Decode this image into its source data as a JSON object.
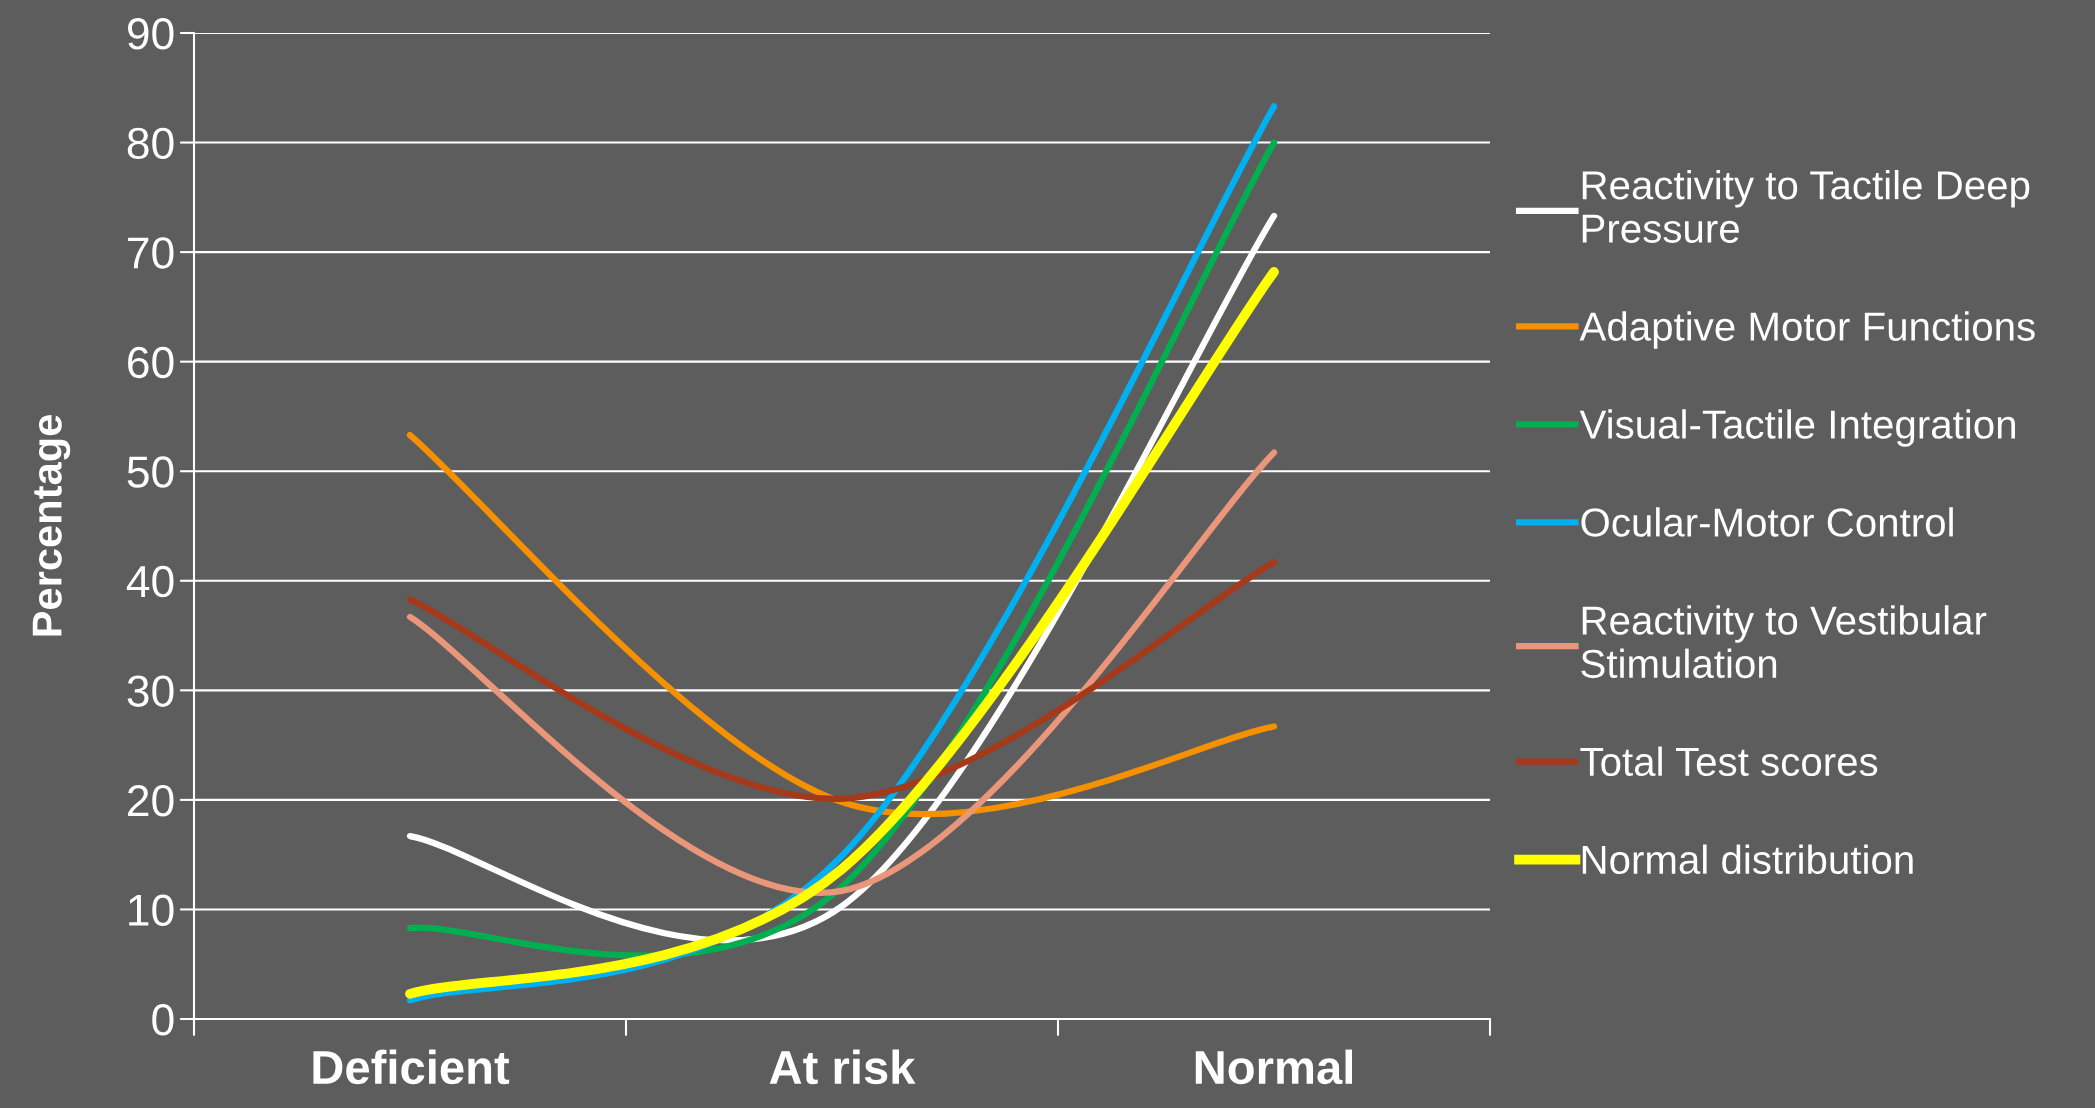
{
  "chart_data": {
    "type": "line",
    "ylabel": "Percentage",
    "categories": [
      "Deficient",
      "At risk",
      "Normal"
    ],
    "series": [
      {
        "name": "Reactivity to Tactile Deep Pressure",
        "color": "#ffffff",
        "values": [
          16.7,
          10.3,
          73.3
        ]
      },
      {
        "name": "Adaptive Motor Functions",
        "color": "#f59100",
        "values": [
          53.3,
          19.8,
          26.7
        ]
      },
      {
        "name": "Visual-Tactile Integration",
        "color": "#00b050",
        "values": [
          8.3,
          12.1,
          80
        ]
      },
      {
        "name": "Ocular-Motor Control",
        "color": "#00b0f0",
        "values": [
          1.7,
          14.9,
          83.3
        ]
      },
      {
        "name": "Reactivity to Vestibular Stimulation",
        "color": "#e9967a",
        "values": [
          36.7,
          11.7,
          51.7
        ]
      },
      {
        "name": "Total Test scores",
        "color": "#a5391a",
        "values": [
          38.3,
          20.1,
          41.7
        ]
      },
      {
        "name": "Normal distribution",
        "color": "#ffff00",
        "values": [
          2.3,
          13.7,
          68.2
        ]
      }
    ],
    "ylim": [
      0,
      90
    ],
    "yticks": [
      0,
      10,
      20,
      30,
      40,
      50,
      60,
      70,
      80,
      90
    ],
    "grid": "y",
    "legend": "right",
    "marker": "none",
    "line_style": "solid"
  }
}
